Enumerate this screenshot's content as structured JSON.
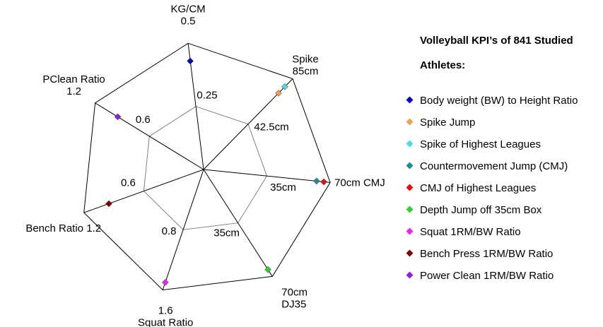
{
  "chart_data": {
    "type": "radar",
    "axes": [
      {
        "key": "kgcm",
        "name_lines": [
          "KG/CM",
          "0.5"
        ],
        "max": 0.5,
        "max_label": "0.5",
        "mid": 0.25,
        "mid_label": "0.25"
      },
      {
        "key": "spike",
        "name_lines": [
          "Spike",
          "85cm"
        ],
        "max": 85,
        "max_label": "85cm",
        "mid": 42.5,
        "mid_label": "42.5cm"
      },
      {
        "key": "cmj",
        "name_lines": [
          "70cm CMJ"
        ],
        "max": 70,
        "max_label": "70cm",
        "mid": 35,
        "mid_label": "35cm"
      },
      {
        "key": "dj",
        "name_lines": [
          "70cm",
          "DJ35"
        ],
        "max": 70,
        "max_label": "70cm",
        "mid": 35,
        "mid_label": "35cm"
      },
      {
        "key": "squat",
        "name_lines": [
          "1.6",
          "Squat Ratio"
        ],
        "max": 1.6,
        "max_label": "1.6",
        "mid": 0.8,
        "mid_label": "0.8"
      },
      {
        "key": "bench",
        "name_lines": [
          "Bench Ratio 1.2"
        ],
        "max": 1.2,
        "max_label": "1.2",
        "mid": 0.6,
        "mid_label": "0.6"
      },
      {
        "key": "pclean",
        "name_lines": [
          "PClean Ratio",
          "1.2"
        ],
        "max": 1.2,
        "max_label": "1.2",
        "mid": 0.6,
        "mid_label": "0.6"
      }
    ],
    "series": [
      {
        "name": "Body weight (BW) to Height Ratio",
        "axis": "kgcm",
        "value": 0.43,
        "color": "#0000cc"
      },
      {
        "name": "Spike Jump",
        "axis": "spike",
        "value": 71.5,
        "color": "#f0a050"
      },
      {
        "name": "Spike of Highest Leagues",
        "axis": "spike",
        "value": 77.5,
        "color": "#40e0e8"
      },
      {
        "name": "Countermovement Jump (CMJ)",
        "axis": "cmj",
        "value": 62.5,
        "color": "#208898"
      },
      {
        "name": "CMJ of Highest Leagues",
        "axis": "cmj",
        "value": 66.5,
        "color": "#e01010"
      },
      {
        "name": "Depth Jump off 35cm Box",
        "axis": "dj",
        "value": 65.5,
        "color": "#30d030"
      },
      {
        "name": "Squat 1RM/BW Ratio",
        "axis": "squat",
        "value": 1.5,
        "color": "#f020f0"
      },
      {
        "name": "Bench Press 1RM/BW Ratio",
        "axis": "bench",
        "value": 0.95,
        "color": "#800000"
      },
      {
        "name": "Power Clean 1RM/BW Ratio",
        "axis": "pclean",
        "value": 0.95,
        "color": "#9020e0"
      }
    ],
    "legend": {
      "title_lines": [
        "Volleyball KPI’s of 841 Studied",
        "Athletes:"
      ],
      "position": "right"
    },
    "grid": true
  }
}
